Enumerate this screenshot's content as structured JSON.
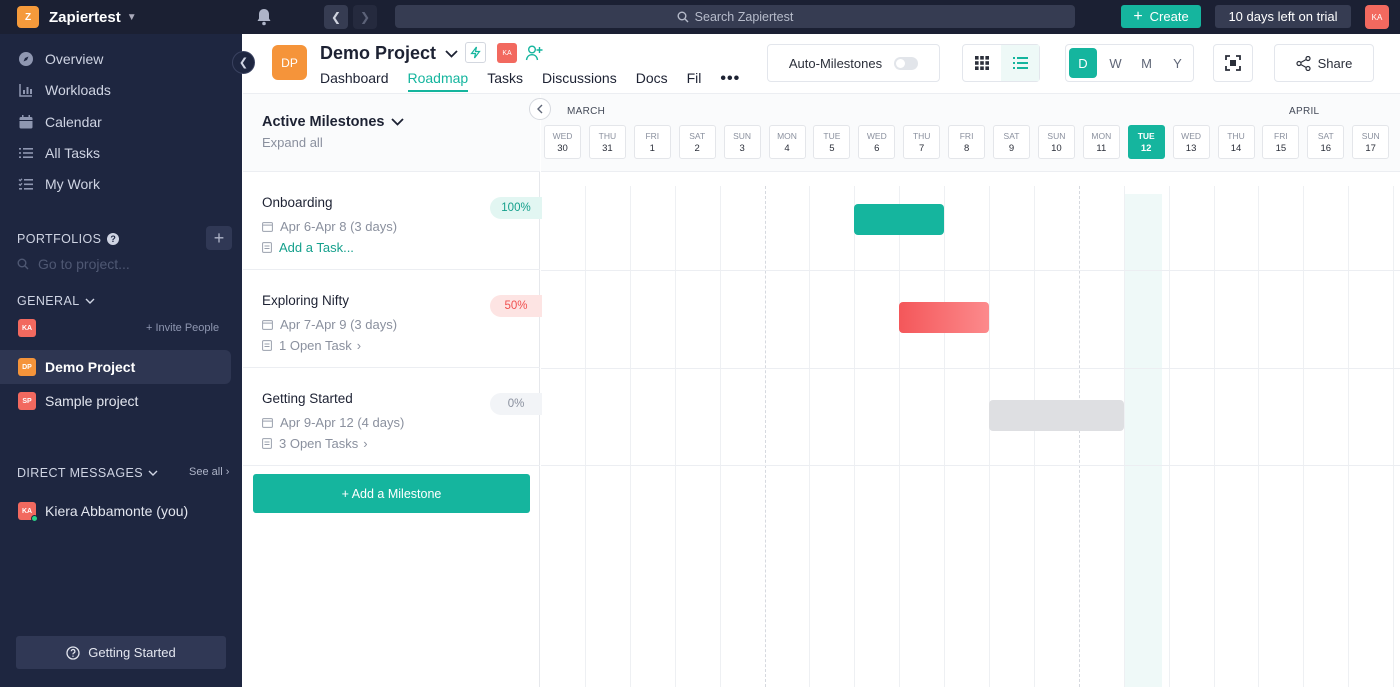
{
  "topbar": {
    "workspace_badge": "Z",
    "workspace_name": "Zapiertest",
    "search_placeholder": "Search Zapiertest",
    "create_label": "Create",
    "trial_text": "10 days left on trial",
    "avatar_initials": "KA"
  },
  "sidebar": {
    "nav": [
      {
        "label": "Overview",
        "icon": "compass-icon"
      },
      {
        "label": "Workloads",
        "icon": "chart-icon"
      },
      {
        "label": "Calendar",
        "icon": "calendar-icon"
      },
      {
        "label": "All Tasks",
        "icon": "list-icon"
      },
      {
        "label": "My Work",
        "icon": "checklist-icon"
      }
    ],
    "portfolios_label": "PORTFOLIOS",
    "goto_placeholder": "Go to project...",
    "general_label": "GENERAL",
    "invite_label": "+ Invite People",
    "projects": [
      {
        "initials": "DP",
        "name": "Demo Project",
        "color": "#f5943a"
      },
      {
        "initials": "SP",
        "name": "Sample project",
        "color": "#f2695f"
      }
    ],
    "dm_label": "DIRECT MESSAGES",
    "see_all_label": "See all",
    "dm_user_initials": "KA",
    "dm_user_name": "Kiera Abbamonte (you)",
    "getting_started_label": "Getting Started"
  },
  "project": {
    "initials": "DP",
    "title": "Demo Project",
    "member_initials": "KA",
    "tabs": [
      "Dashboard",
      "Roadmap",
      "Tasks",
      "Discussions",
      "Docs",
      "Fil"
    ],
    "active_tab": "Roadmap",
    "auto_milestones_label": "Auto-Milestones",
    "scale_options": [
      "D",
      "W",
      "M",
      "Y"
    ],
    "selected_scale": "D",
    "share_label": "Share"
  },
  "milestones_panel": {
    "title": "Active Milestones",
    "expand_label": "Expand all",
    "add_label": "+ Add a Milestone",
    "items": [
      {
        "name": "Onboarding",
        "dates": "Apr 6-Apr 8 (3 days)",
        "tasks": "Add a Task...",
        "progress": "100%",
        "progress_bg": "#e2f6f2",
        "progress_color": "#15a08c",
        "bar_color": "#15b59e"
      },
      {
        "name": "Exploring Nifty",
        "dates": "Apr 7-Apr 9 (3 days)",
        "tasks": "1 Open Task",
        "progress": "50%",
        "progress_bg": "#fde4e3",
        "progress_color": "#f0504f",
        "bar_color": "#f4575a"
      },
      {
        "name": "Getting Started",
        "dates": "Apr 9-Apr 12 (4 days)",
        "tasks": "3 Open Tasks",
        "progress": "0%",
        "progress_bg": "#f2f4f7",
        "progress_color": "#8a909e",
        "bar_color": "#dedfe2"
      }
    ]
  },
  "timeline": {
    "months": [
      "MARCH",
      "APRIL"
    ],
    "days": [
      {
        "dn": "WED",
        "dd": "30"
      },
      {
        "dn": "THU",
        "dd": "31"
      },
      {
        "dn": "FRI",
        "dd": "1"
      },
      {
        "dn": "SAT",
        "dd": "2"
      },
      {
        "dn": "SUN",
        "dd": "3"
      },
      {
        "dn": "MON",
        "dd": "4"
      },
      {
        "dn": "TUE",
        "dd": "5"
      },
      {
        "dn": "WED",
        "dd": "6"
      },
      {
        "dn": "THU",
        "dd": "7"
      },
      {
        "dn": "FRI",
        "dd": "8"
      },
      {
        "dn": "SAT",
        "dd": "9"
      },
      {
        "dn": "SUN",
        "dd": "10"
      },
      {
        "dn": "MON",
        "dd": "11"
      },
      {
        "dn": "TUE",
        "dd": "12"
      },
      {
        "dn": "WED",
        "dd": "13"
      },
      {
        "dn": "THU",
        "dd": "14"
      },
      {
        "dn": "FRI",
        "dd": "15"
      },
      {
        "dn": "SAT",
        "dd": "16"
      },
      {
        "dn": "SUN",
        "dd": "17"
      }
    ],
    "today": "12"
  },
  "colors": {
    "accent": "#15b59e",
    "sidebar_bg": "#1e2640",
    "topbar_bg": "#1b2033"
  }
}
